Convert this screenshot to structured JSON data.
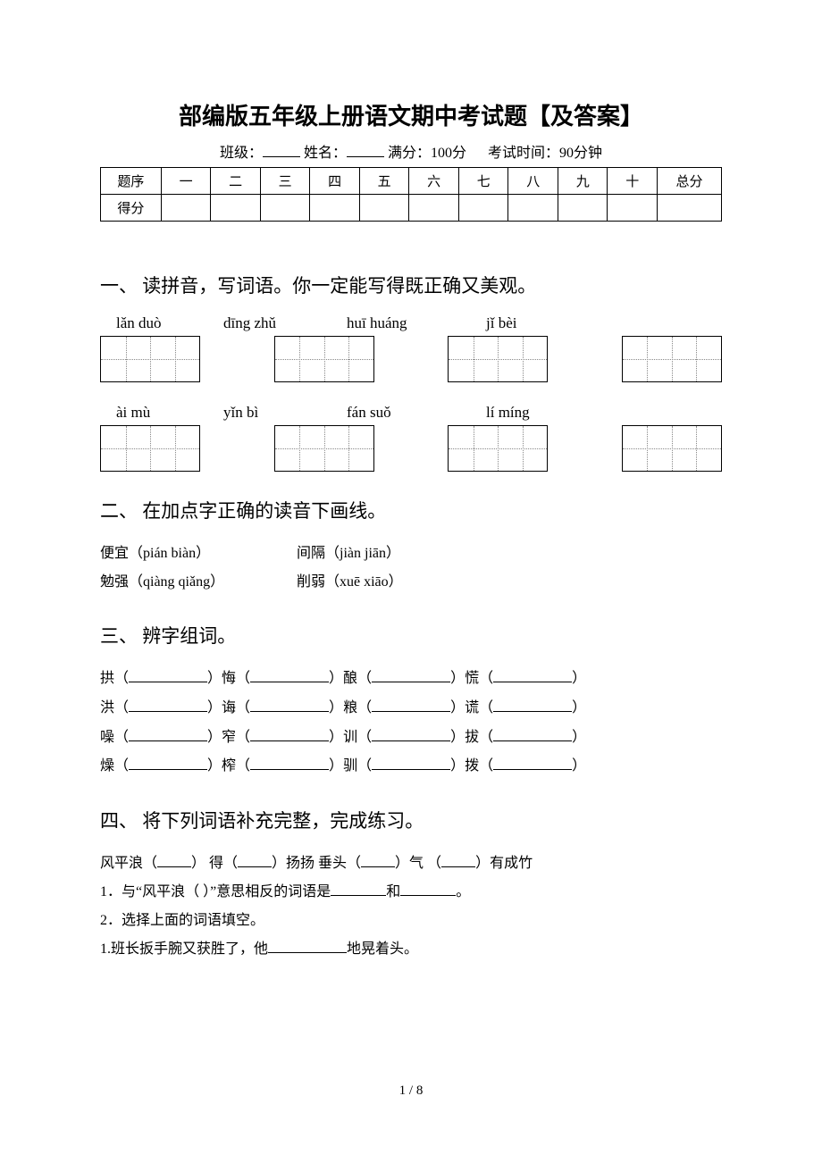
{
  "title": "部编版五年级上册语文期中考试题【及答案】",
  "meta": {
    "class_label": "班级：",
    "name_label": "姓名：",
    "full_score_label": "满分：100分",
    "time_label": "考试时间：90分钟"
  },
  "score_table": {
    "row1_label": "题序",
    "row2_label": "得分",
    "cols": [
      "一",
      "二",
      "三",
      "四",
      "五",
      "六",
      "七",
      "八",
      "九",
      "十"
    ],
    "total_label": "总分"
  },
  "sections": {
    "s1": {
      "heading": "一、 读拼音，写词语。你一定能写得既正确又美观。",
      "row1": [
        "lǎn duò",
        "dīng zhǔ",
        "huī huáng",
        "jǐ bèi"
      ],
      "row2": [
        "ài mù",
        "yǐn bì",
        "fán suǒ",
        "lí míng"
      ]
    },
    "s2": {
      "heading": "二、 在加点字正确的读音下画线。",
      "items": [
        {
          "word": "便宜（pián  biàn）",
          "word2": "间隔（jiàn  jiān）"
        },
        {
          "word": "勉强（qiàng  qiǎng）",
          "word2": "削弱（xuē  xiāo）"
        }
      ]
    },
    "s3": {
      "heading": "三、 辨字组词。",
      "rows": [
        [
          "拱",
          "悔",
          "酿",
          "慌"
        ],
        [
          "洪",
          "诲",
          "粮",
          "谎"
        ],
        [
          "噪",
          "窄",
          "训",
          "拔"
        ],
        [
          "燥",
          "榨",
          "驯",
          "拨"
        ]
      ]
    },
    "s4": {
      "heading": "四、 将下列词语补充完整，完成练习。",
      "line1_parts": [
        "风平浪（",
        "）   得（",
        "）扬扬    垂头（",
        "）气   （",
        "）有成竹"
      ],
      "line2_a": "1．与“风平浪（  ）”意思相反的词语是",
      "line2_b": "和",
      "line2_c": "。",
      "line3": "2．选择上面的词语填空。",
      "line4_a": "1.班长扳手腕又获胜了，他",
      "line4_b": "地晃着头。"
    }
  },
  "page_number": "1 / 8"
}
